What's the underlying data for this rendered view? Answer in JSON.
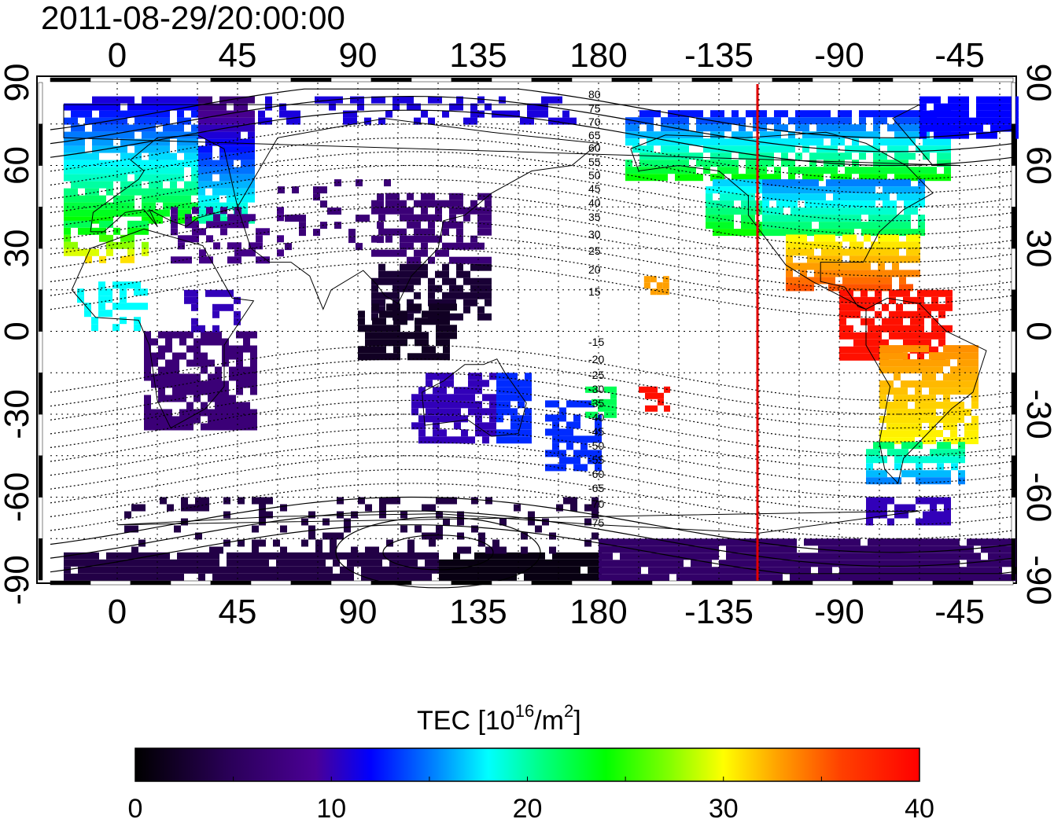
{
  "title": "2011-08-29/20:00:00",
  "longitude_ticks": [
    "0",
    "45",
    "90",
    "135",
    "180",
    "-135",
    "-90",
    "-45"
  ],
  "latitude_ticks": [
    "90",
    "60",
    "30",
    "0",
    "-30",
    "-60",
    "-90"
  ],
  "magnetic_lat_labels_north": [
    "80",
    "75",
    "70",
    "65",
    "60",
    "55",
    "50",
    "45",
    "40",
    "35",
    "30",
    "25",
    "20",
    "15"
  ],
  "magnetic_lat_labels_south": [
    "-15",
    "-20",
    "-25",
    "-30",
    "-35",
    "-40",
    "-45",
    "-50",
    "-55",
    "-60",
    "-65",
    "-70",
    "-75"
  ],
  "colorbar": {
    "label_main": "TEC  [10",
    "label_sup": "16",
    "label_mid": "/m",
    "label_sup2": "2",
    "label_end": "]",
    "tick_labels": [
      "0",
      "10",
      "20",
      "30",
      "40"
    ],
    "colors": [
      "#000000",
      "#3a0078",
      "#0000ff",
      "#00ffff",
      "#00ff00",
      "#ffff00",
      "#ff8000",
      "#ff0000"
    ]
  },
  "map": {
    "projection": "cylindrical",
    "lon_range": "-25 to 335",
    "lat_range": "-90 to 90",
    "grid": "dotted every 15 degrees",
    "terminator_longitude": -120,
    "terminator_color": "#e00000"
  }
}
